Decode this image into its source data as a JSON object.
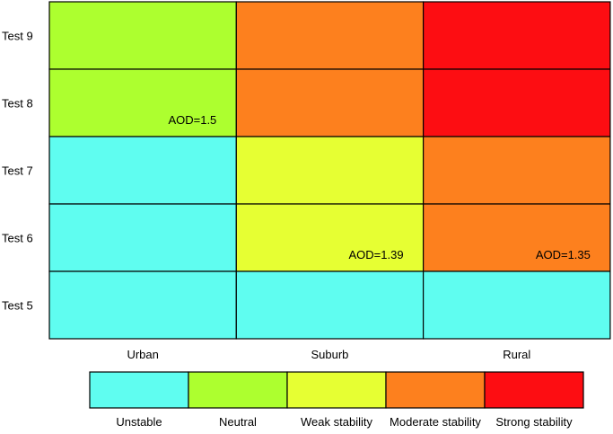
{
  "chart_data": {
    "type": "heatmap",
    "rows": [
      "Test 9",
      "Test 8",
      "Test 7",
      "Test 6",
      "Test 5"
    ],
    "columns": [
      "Urban",
      "Suburb",
      "Rural"
    ],
    "cells": [
      [
        "Neutral",
        "Moderate stability",
        "Strong stability"
      ],
      [
        "Neutral",
        "Moderate stability",
        "Strong stability"
      ],
      [
        "Unstable",
        "Weak stability",
        "Moderate stability"
      ],
      [
        "Unstable",
        "Weak stability",
        "Moderate stability"
      ],
      [
        "Unstable",
        "Unstable",
        "Unstable"
      ]
    ],
    "annotations": [
      {
        "row": 1,
        "col": 0,
        "text": "AOD=1.5"
      },
      {
        "row": 3,
        "col": 1,
        "text": "AOD=1.39"
      },
      {
        "row": 3,
        "col": 2,
        "text": "AOD=1.35"
      }
    ],
    "legend": {
      "placement": "bottom",
      "entries": [
        {
          "label": "Unstable",
          "color": "#5ffdf0"
        },
        {
          "label": "Neutral",
          "color": "#adff2f"
        },
        {
          "label": "Weak stability",
          "color": "#e6ff33"
        },
        {
          "label": "Moderate stability",
          "color": "#fd801e"
        },
        {
          "label": "Strong stability",
          "color": "#fd0d12"
        }
      ]
    }
  }
}
